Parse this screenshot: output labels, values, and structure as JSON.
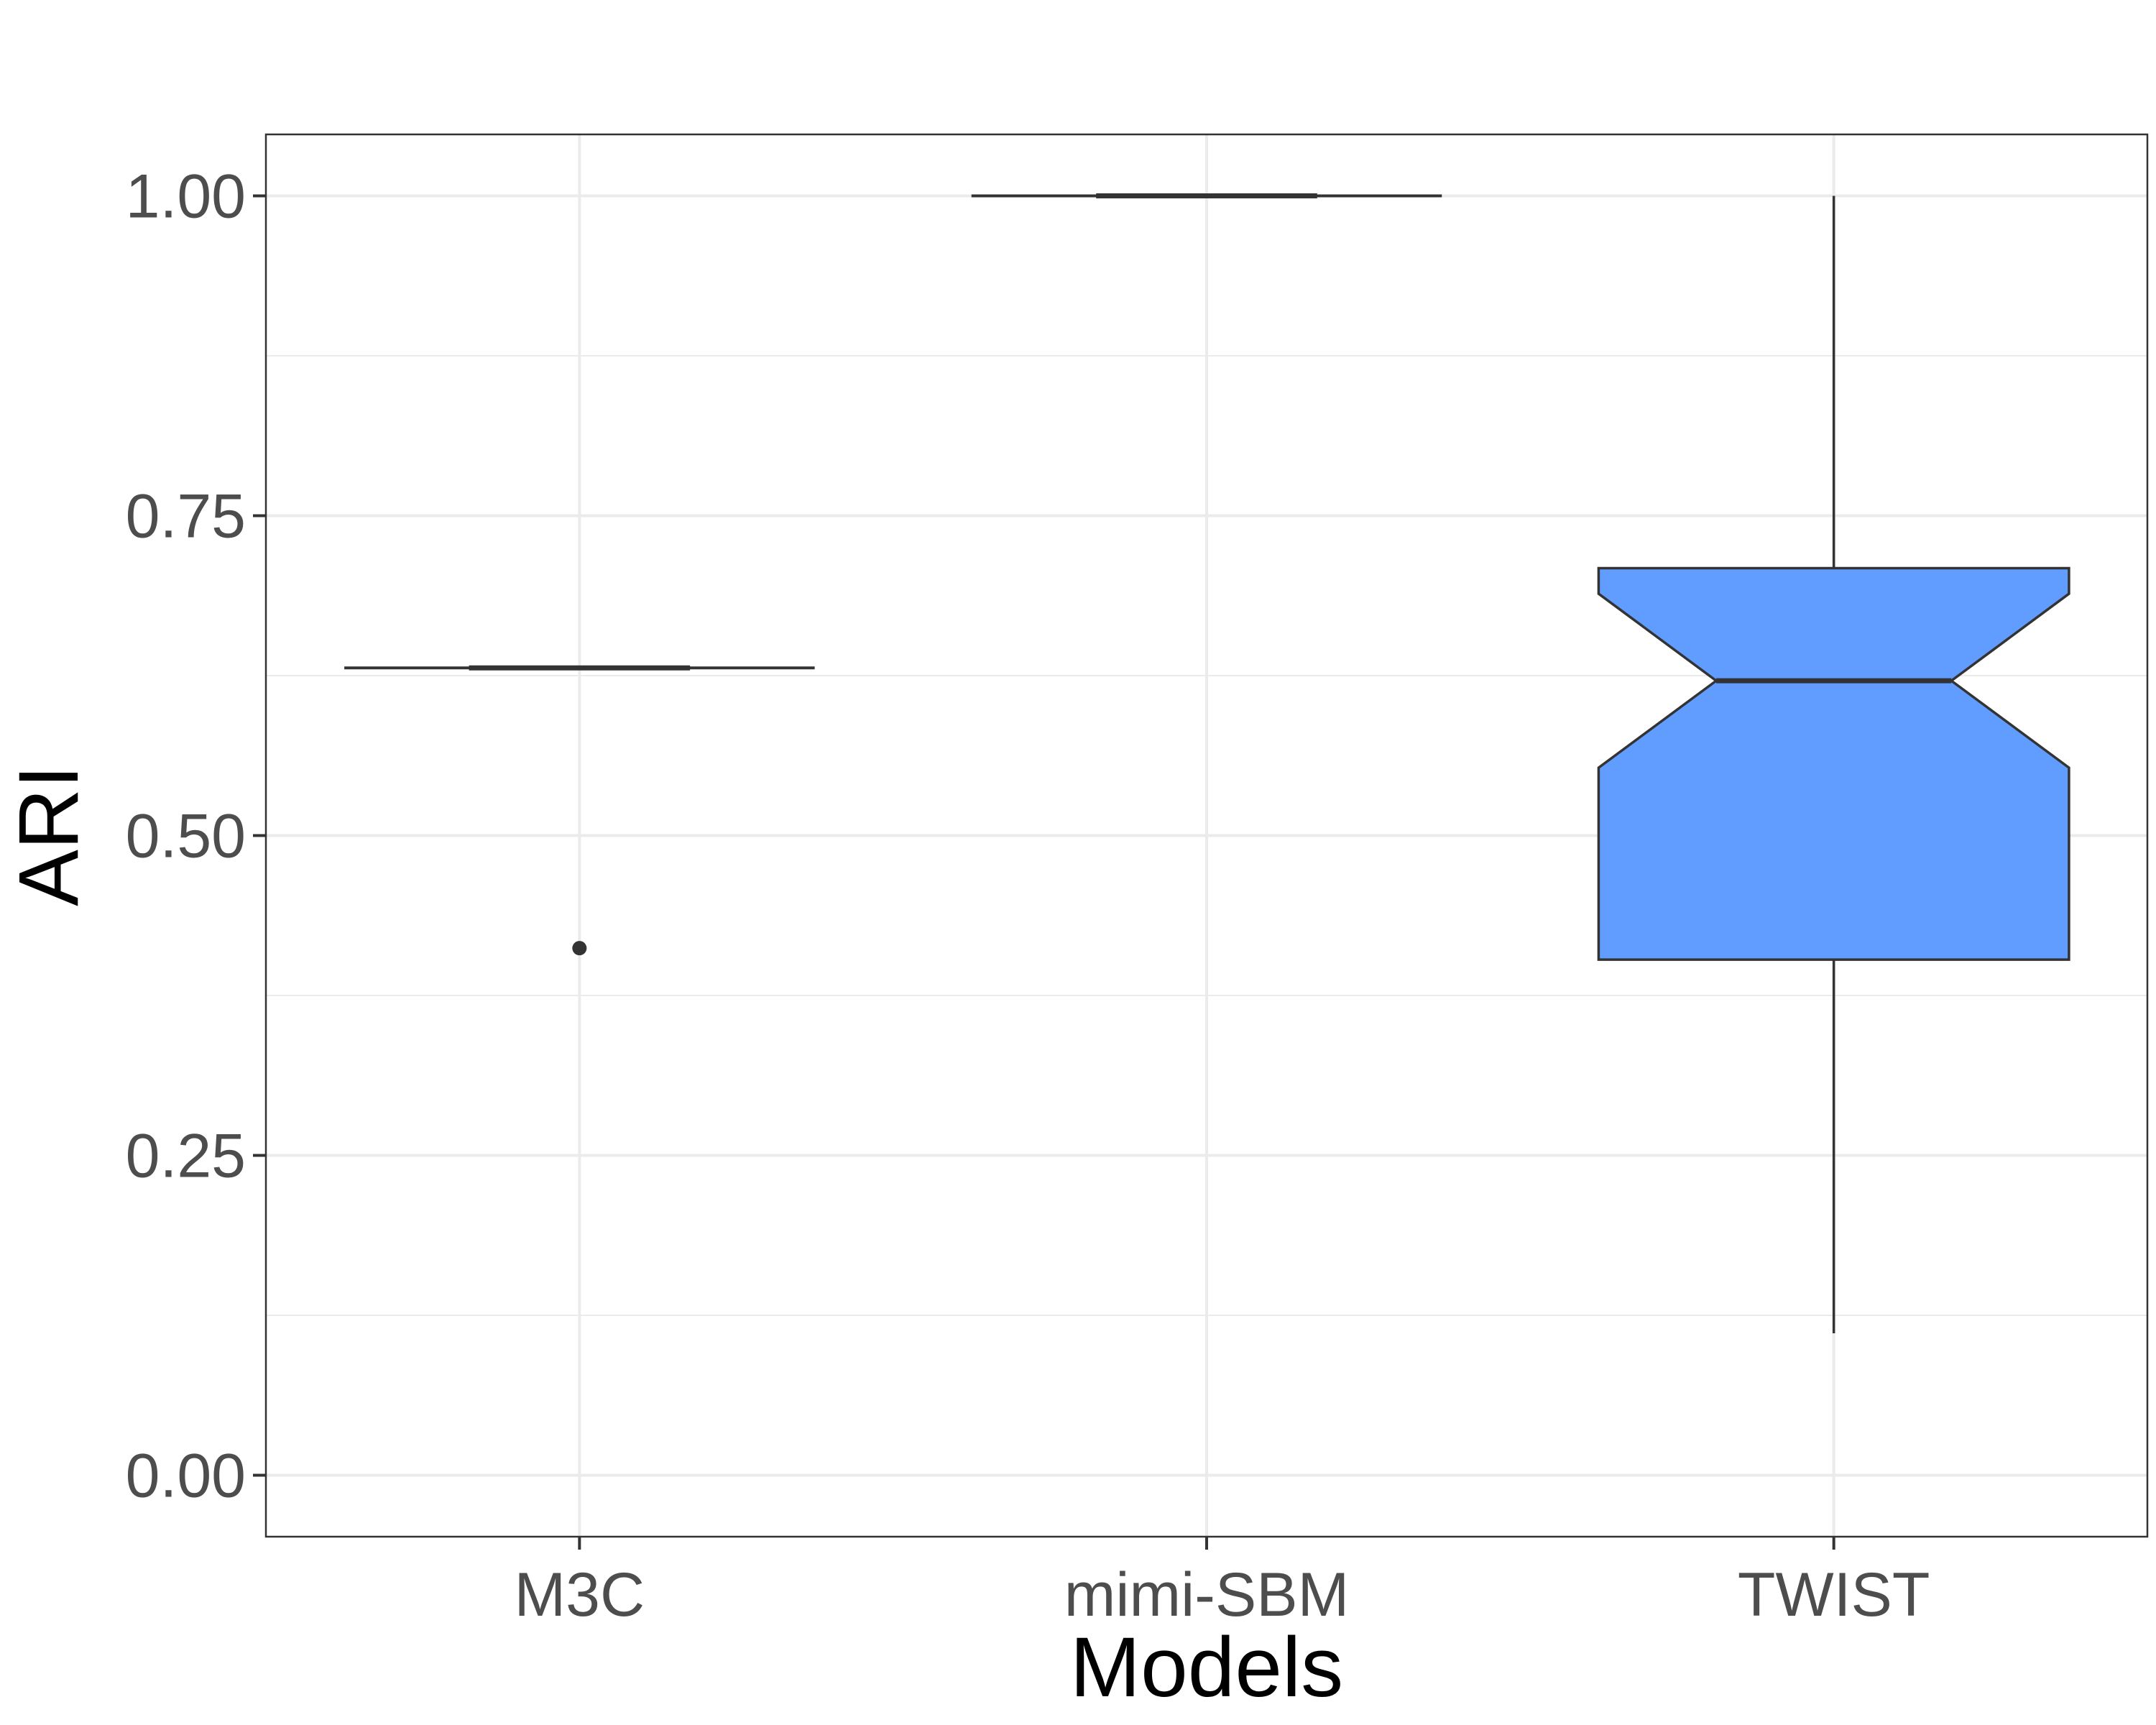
{
  "chart_data": {
    "type": "box",
    "title": "",
    "xlabel": "Models",
    "ylabel": "ARI",
    "ylim": [
      -0.048,
      1.048
    ],
    "yticks": [
      0.0,
      0.25,
      0.5,
      0.75,
      1.0
    ],
    "ytick_labels": [
      "0.00",
      "0.25",
      "0.50",
      "0.75",
      "1.00"
    ],
    "categories": [
      "M3C",
      "mimi-SBM",
      "TWIST"
    ],
    "grid": true,
    "notched": true,
    "boxes": [
      {
        "category": "M3C",
        "min": 0.631,
        "q1": 0.631,
        "median": 0.631,
        "q3": 0.631,
        "max": 0.631,
        "notch_low": 0.631,
        "notch_high": 0.631,
        "outliers": [
          0.412
        ],
        "fill": "#ffffff"
      },
      {
        "category": "mimi-SBM",
        "min": 1.0,
        "q1": 1.0,
        "median": 1.0,
        "q3": 1.0,
        "max": 1.0,
        "notch_low": 1.0,
        "notch_high": 1.0,
        "outliers": [],
        "fill": "#ffffff"
      },
      {
        "category": "TWIST",
        "min": 0.111,
        "q1": 0.403,
        "median": 0.621,
        "q3": 0.709,
        "max": 1.0,
        "notch_low": 0.553,
        "notch_high": 0.689,
        "outliers": [],
        "fill": "#619cff"
      }
    ],
    "colors": {
      "box_fill": "#619cff",
      "stroke": "#333333",
      "grid": "#ebebeb",
      "panel_border": "#333333"
    }
  }
}
